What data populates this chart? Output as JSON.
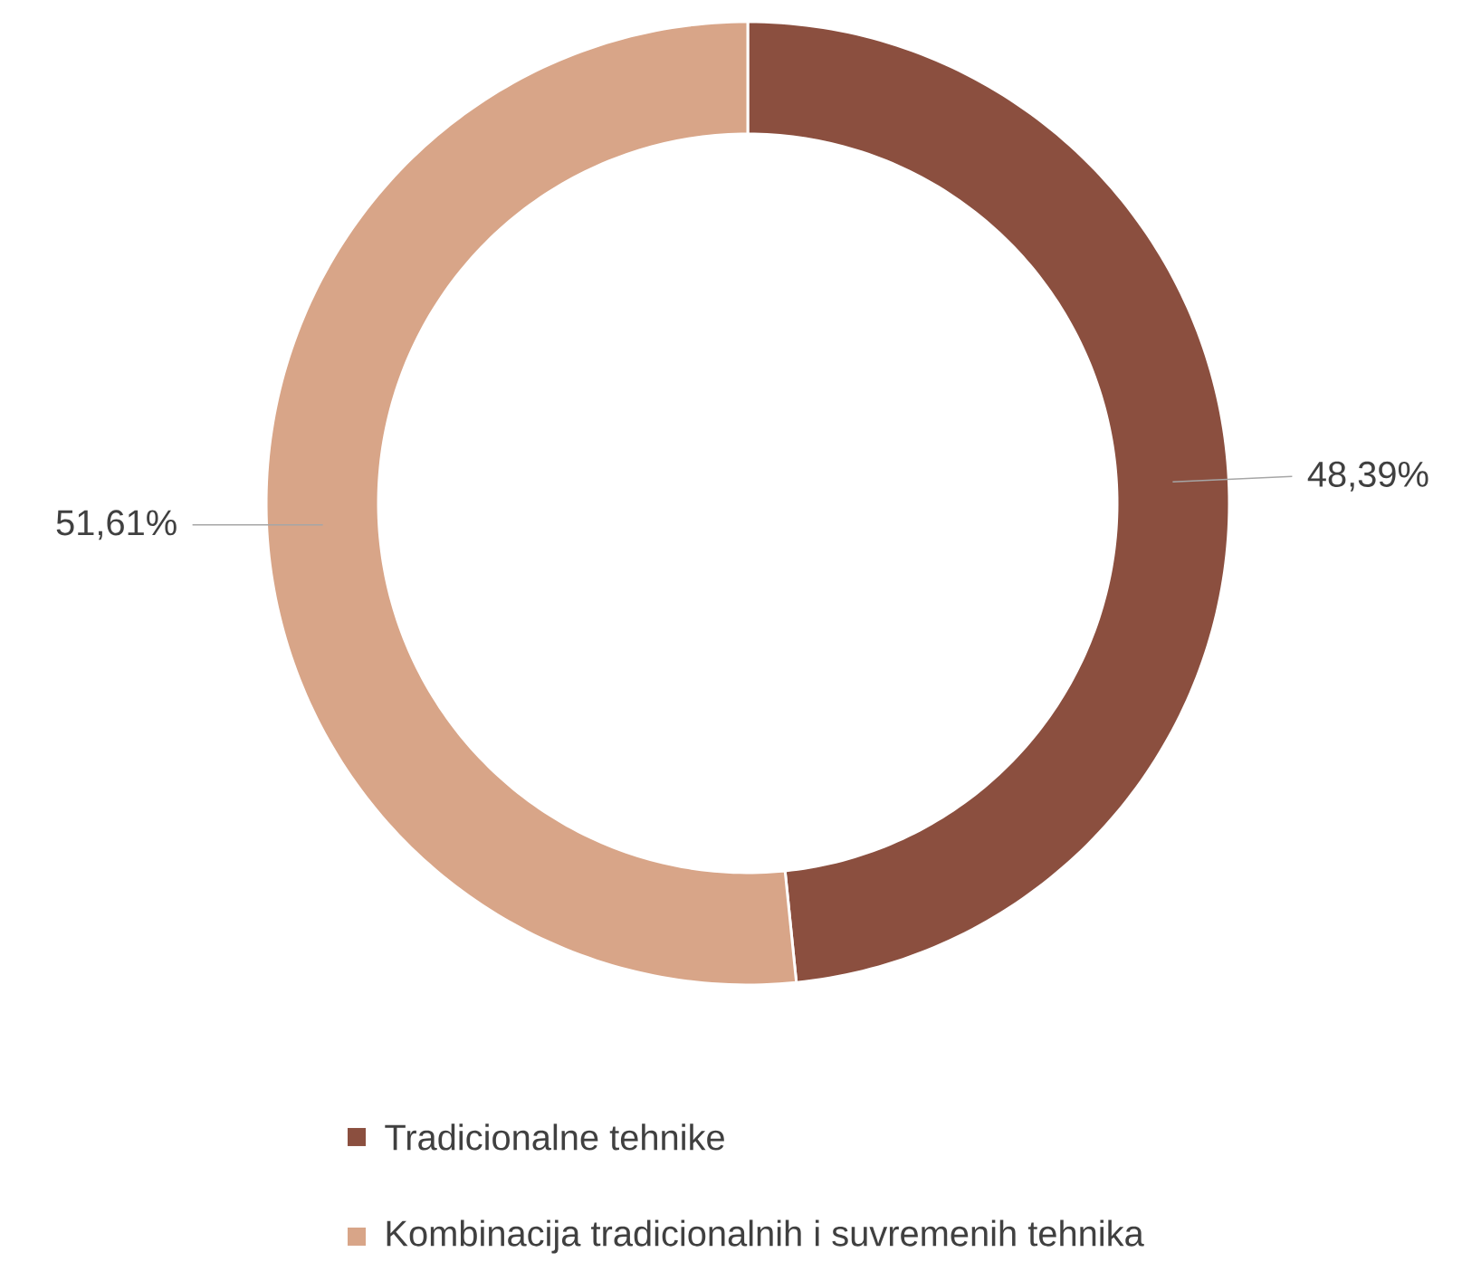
{
  "chart_data": {
    "type": "donut",
    "categories": [
      "Tradicionalne tehnike",
      "Kombinacija tradicionalnih i suvremenih tehnika"
    ],
    "values": [
      48.39,
      51.61
    ],
    "value_labels": [
      "48,39%",
      "51,61%"
    ],
    "colors": [
      "#8b4f3f",
      "#d8a588"
    ],
    "legend": "bottom"
  }
}
